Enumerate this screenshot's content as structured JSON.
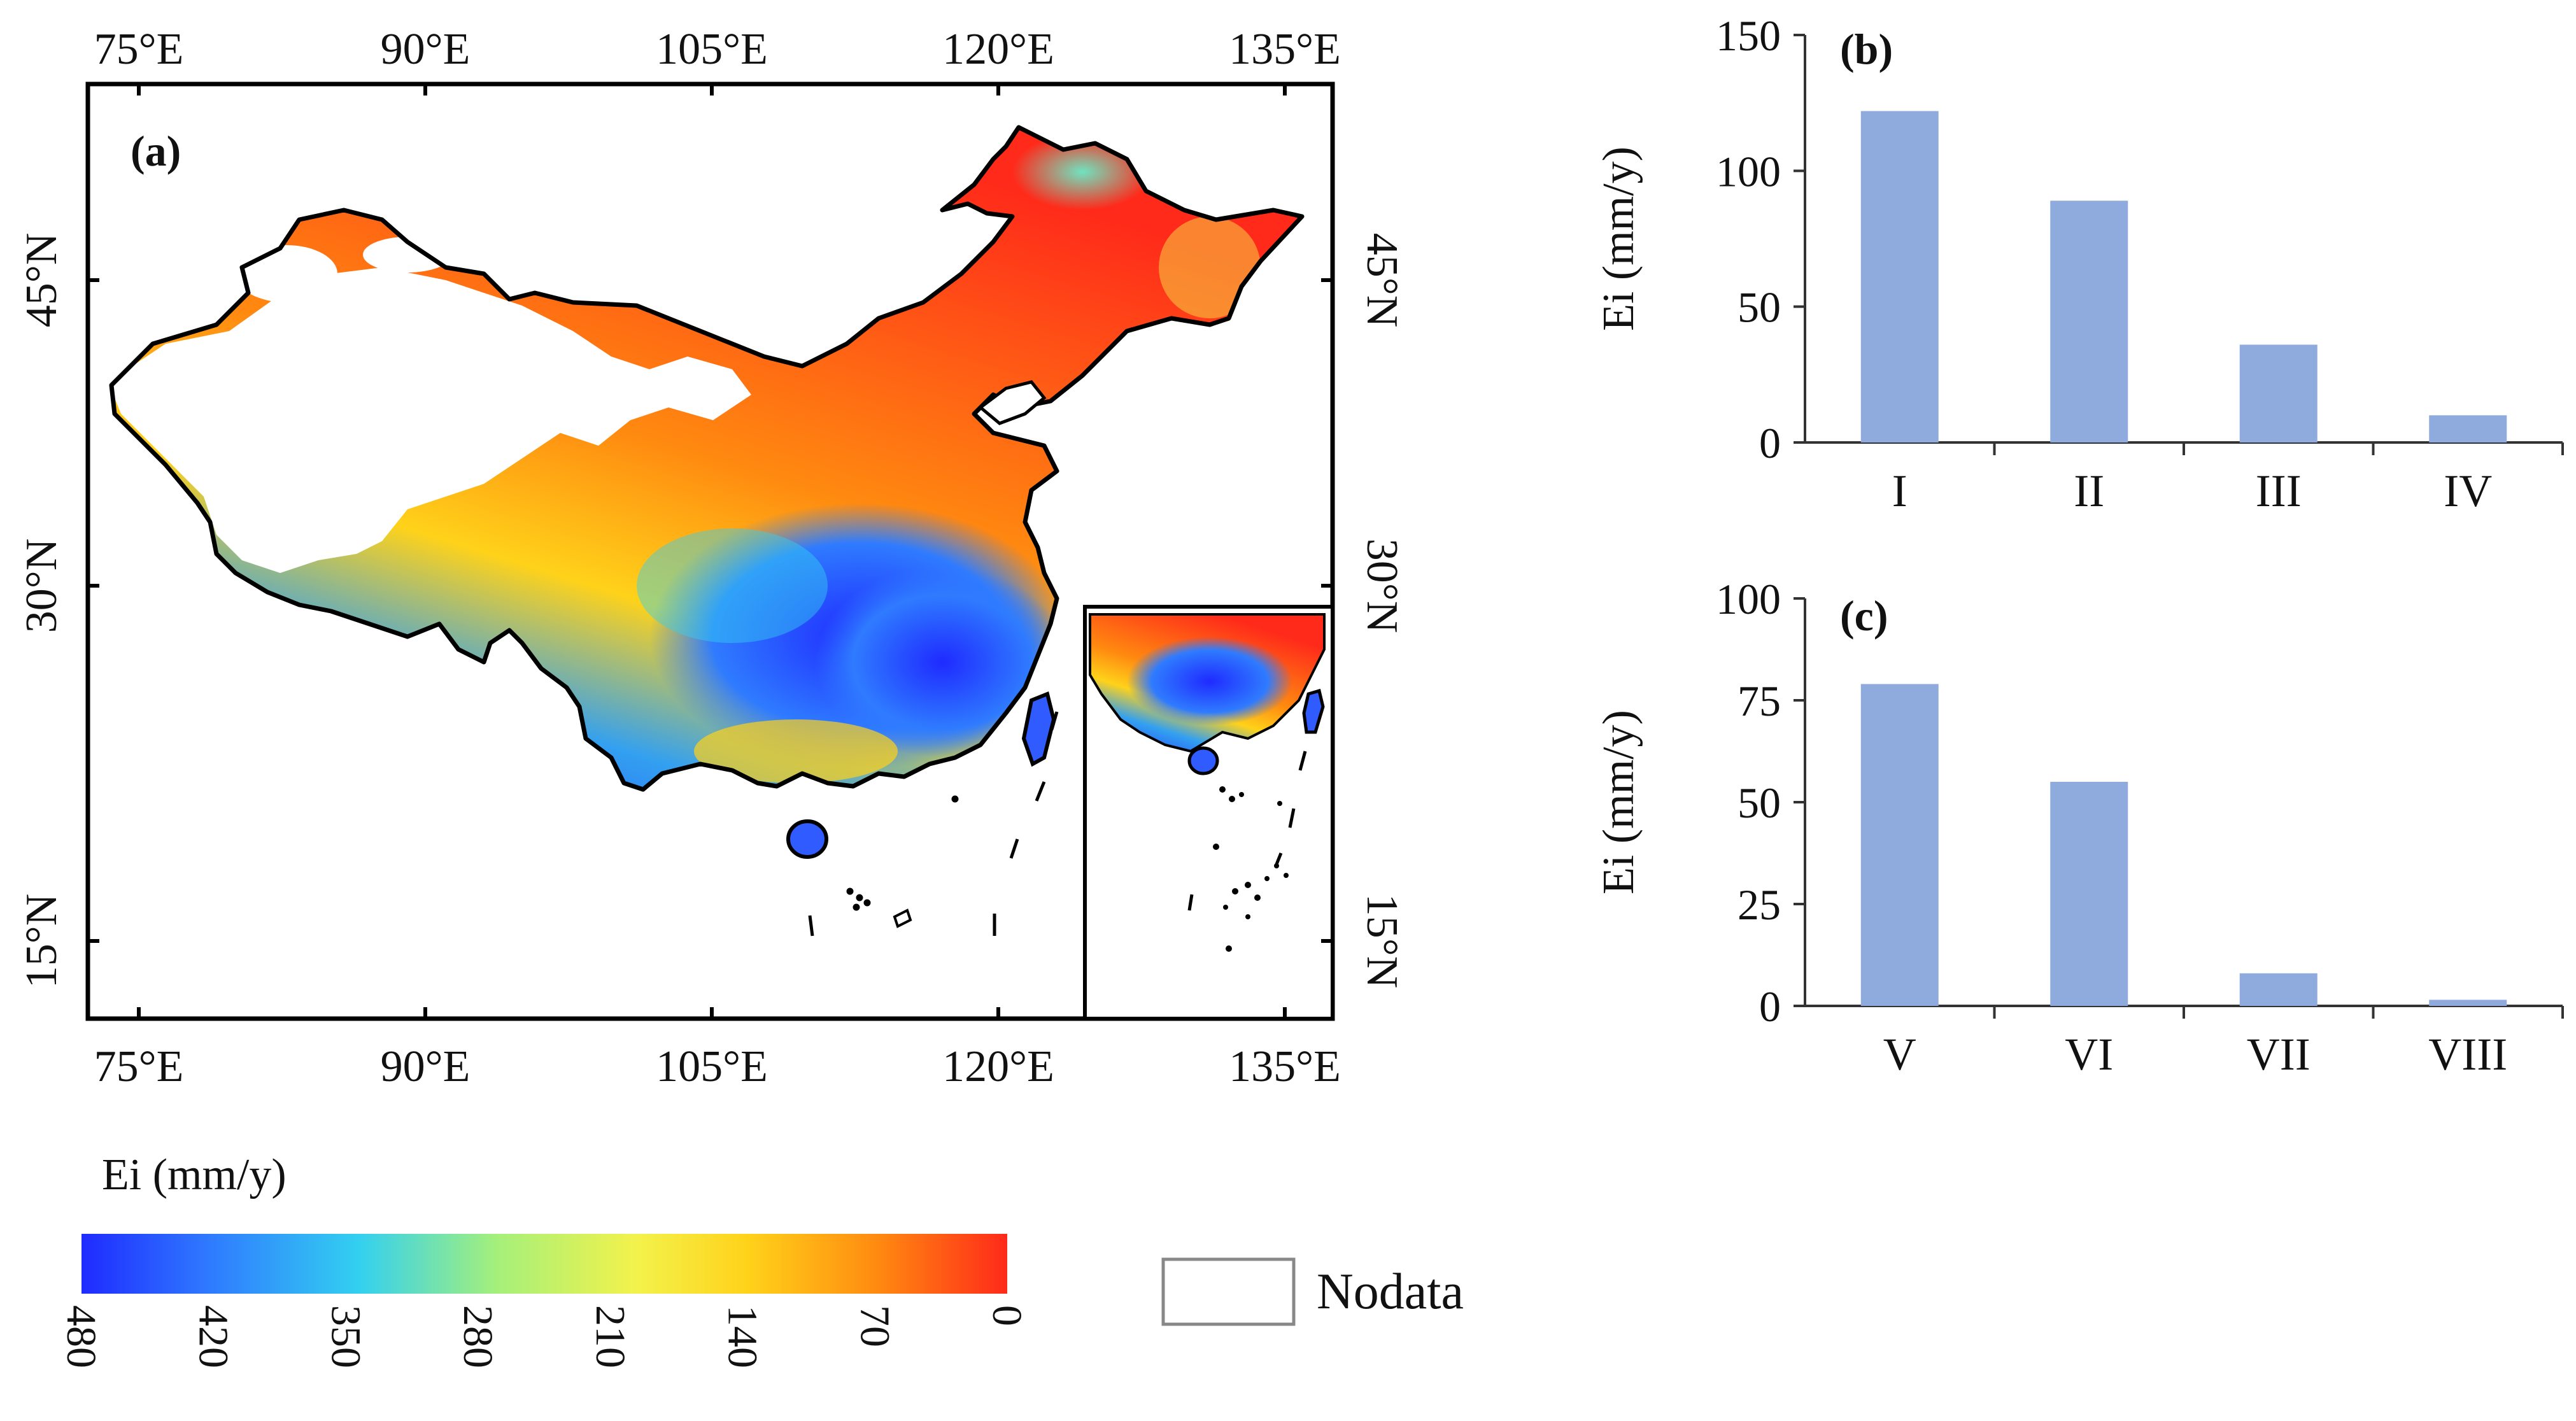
{
  "map_panel": {
    "label": "(a)",
    "lon_ticks": [
      "75°E",
      "90°E",
      "105°E",
      "120°E",
      "135°E"
    ],
    "lat_ticks": [
      "45°N",
      "30°N",
      "15°N"
    ]
  },
  "colorbar": {
    "title": "Ei (mm/y)",
    "ticks": [
      "480",
      "420",
      "350",
      "280",
      "210",
      "140",
      "70",
      "0"
    ],
    "colors": [
      "#1f2bff",
      "#2f7bff",
      "#33d0f0",
      "#a6f07a",
      "#f3f24b",
      "#ffd21a",
      "#ff8a10",
      "#ff2a1a"
    ]
  },
  "legend": {
    "nodata_label": "Nodata"
  },
  "chart_data": [
    {
      "type": "bar",
      "label": "(b)",
      "categories": [
        "I",
        "II",
        "III",
        "IV"
      ],
      "values": [
        122,
        89,
        36,
        10
      ],
      "ylabel": "Ei (mm/y)",
      "ylim": [
        0,
        150
      ],
      "yticks": [
        "0",
        "50",
        "100",
        "150"
      ],
      "bar_color": "#8faadc"
    },
    {
      "type": "bar",
      "label": "(c)",
      "categories": [
        "V",
        "VI",
        "VII",
        "VIII"
      ],
      "values": [
        79,
        55,
        8,
        1.5
      ],
      "ylabel": "Ei (mm/y)",
      "ylim": [
        0,
        100
      ],
      "yticks": [
        "0",
        "25",
        "50",
        "75",
        "100"
      ],
      "bar_color": "#8faadc"
    }
  ]
}
